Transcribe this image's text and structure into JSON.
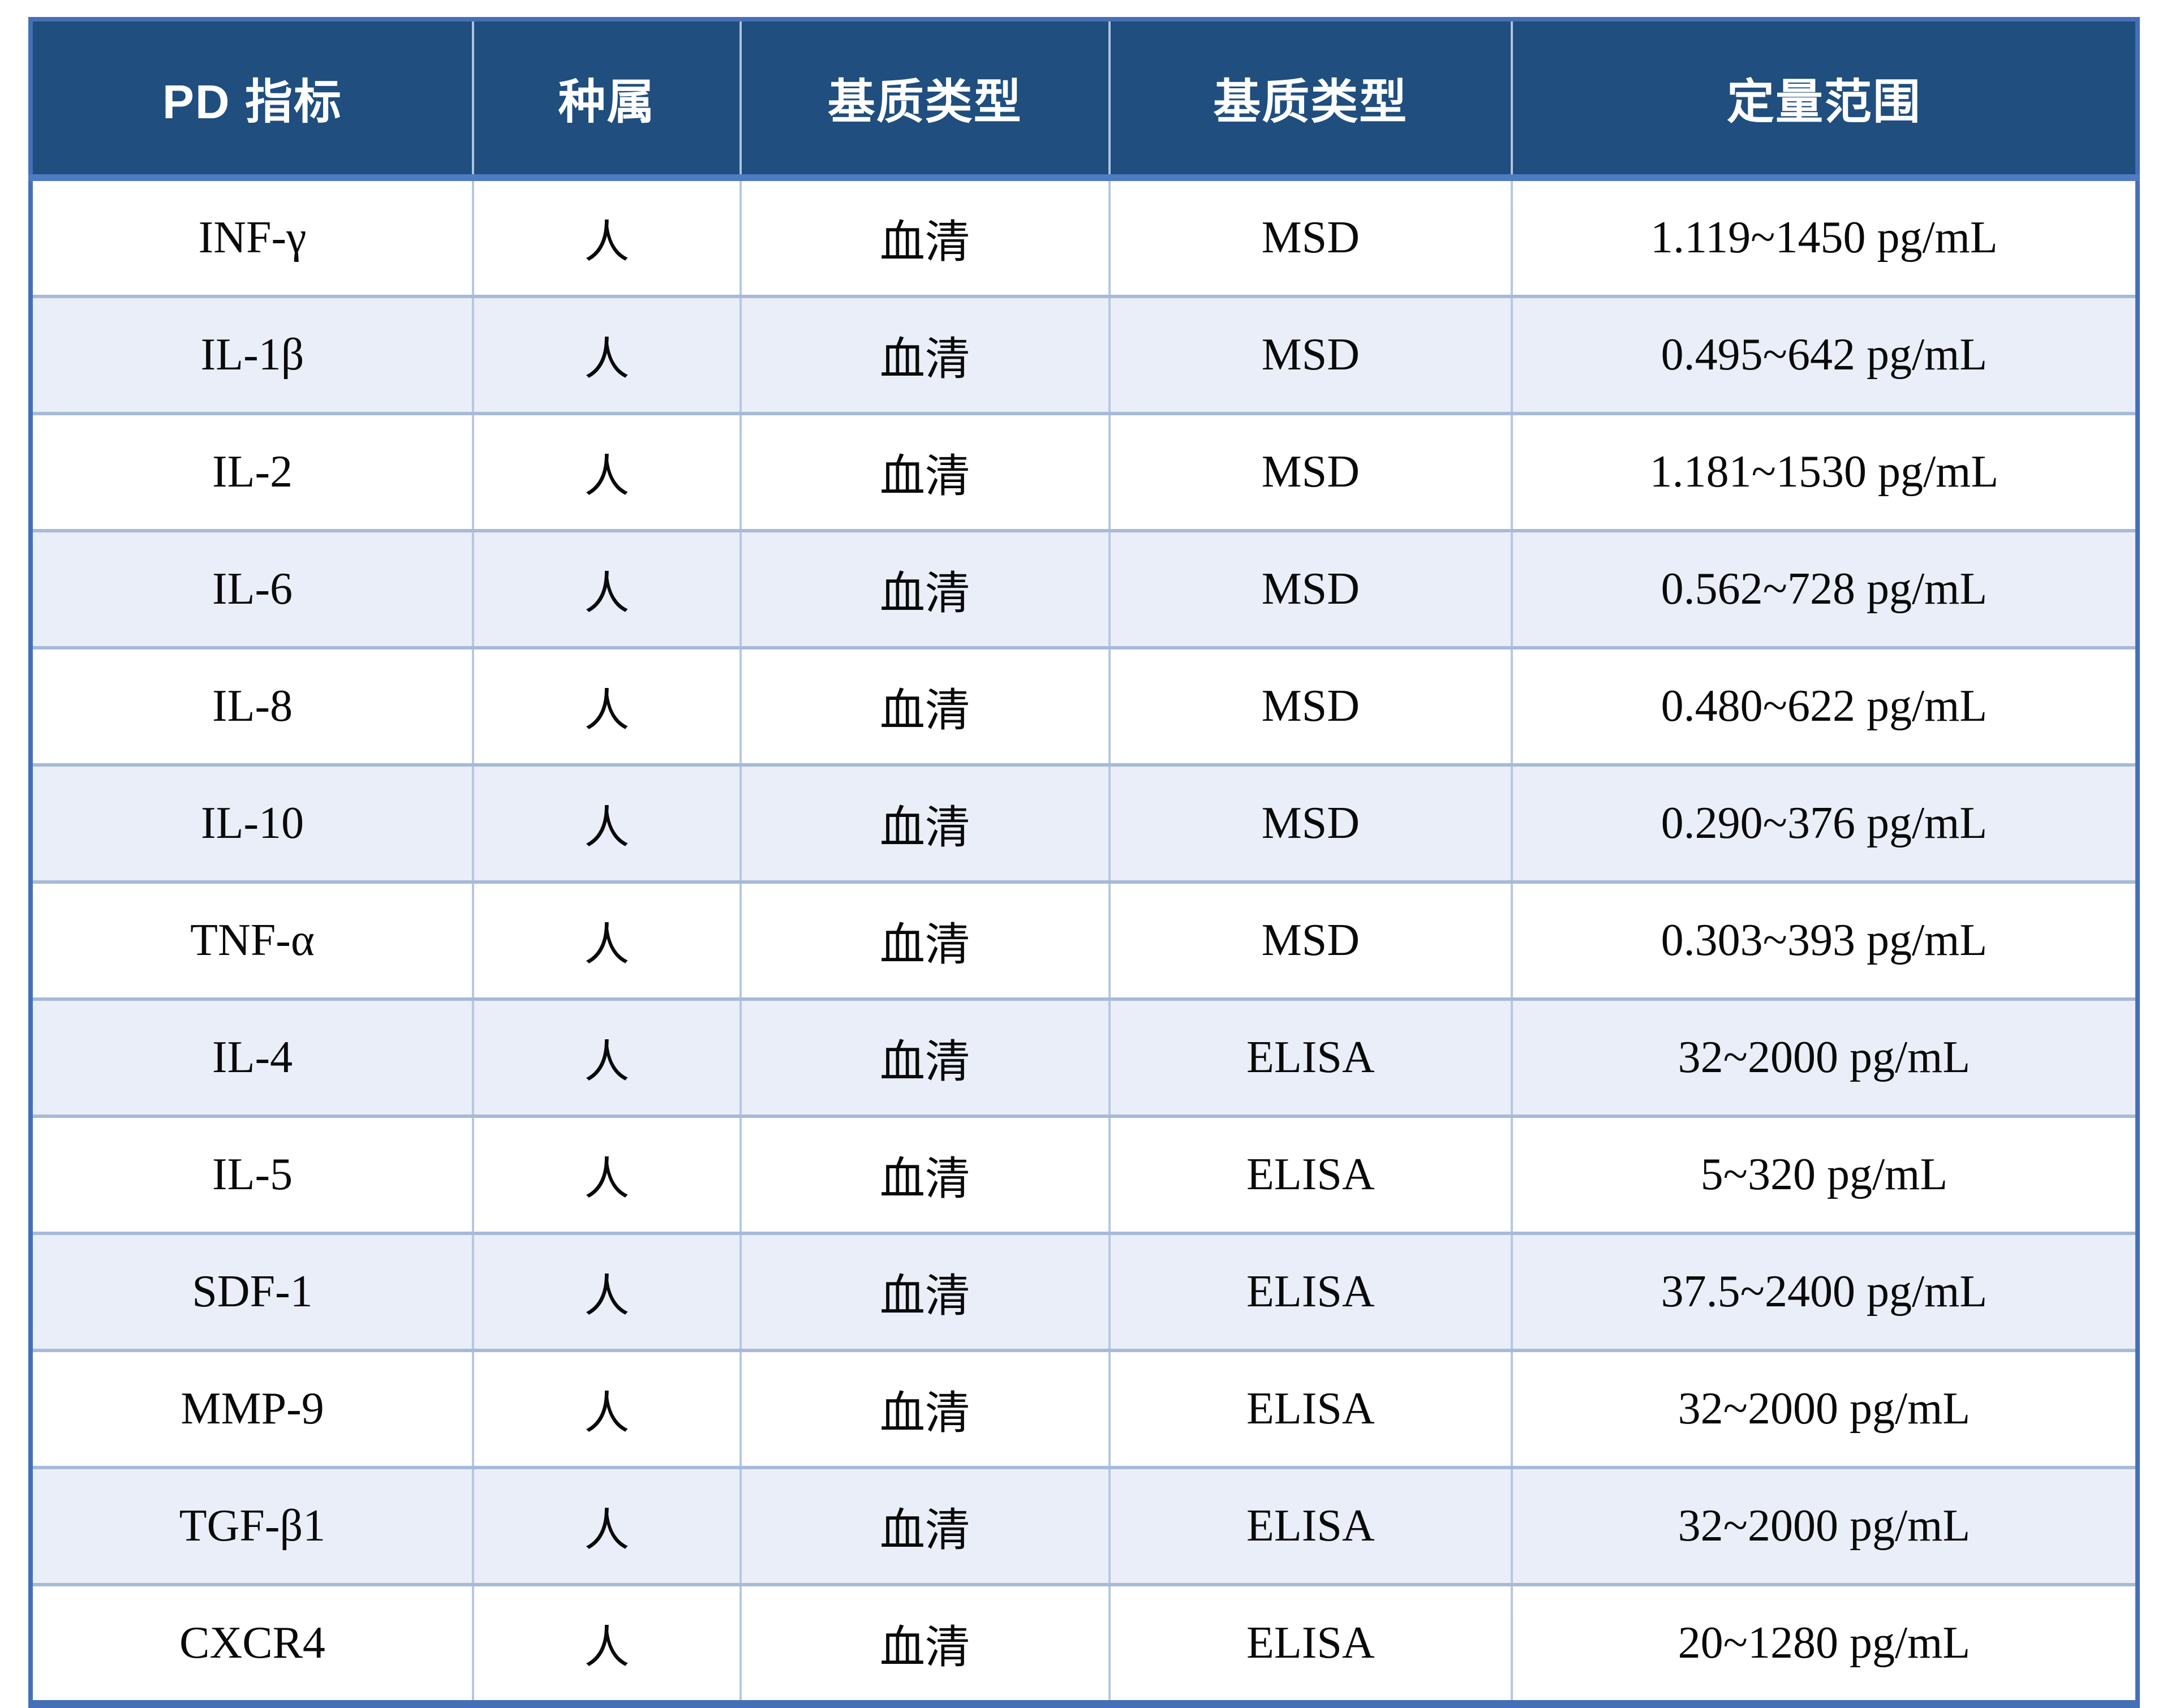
{
  "table": {
    "headers": [
      "PD 指标",
      "种属",
      "基质类型",
      "基质类型",
      "定量范围"
    ],
    "rows": [
      {
        "indicator": "INF-γ",
        "species": "人",
        "matrix": "血清",
        "platform": "MSD",
        "range": "1.119~1450 pg/mL"
      },
      {
        "indicator": "IL-1β",
        "species": "人",
        "matrix": "血清",
        "platform": "MSD",
        "range": "0.495~642 pg/mL"
      },
      {
        "indicator": "IL-2",
        "species": "人",
        "matrix": "血清",
        "platform": "MSD",
        "range": "1.181~1530 pg/mL"
      },
      {
        "indicator": "IL-6",
        "species": "人",
        "matrix": "血清",
        "platform": "MSD",
        "range": "0.562~728 pg/mL"
      },
      {
        "indicator": "IL-8",
        "species": "人",
        "matrix": "血清",
        "platform": "MSD",
        "range": "0.480~622 pg/mL"
      },
      {
        "indicator": "IL-10",
        "species": "人",
        "matrix": "血清",
        "platform": "MSD",
        "range": "0.290~376 pg/mL"
      },
      {
        "indicator": "TNF-α",
        "species": "人",
        "matrix": "血清",
        "platform": "MSD",
        "range": "0.303~393 pg/mL"
      },
      {
        "indicator": "IL-4",
        "species": "人",
        "matrix": "血清",
        "platform": "ELISA",
        "range": "32~2000 pg/mL"
      },
      {
        "indicator": "IL-5",
        "species": "人",
        "matrix": "血清",
        "platform": "ELISA",
        "range": "5~320 pg/mL"
      },
      {
        "indicator": "SDF-1",
        "species": "人",
        "matrix": "血清",
        "platform": "ELISA",
        "range": "37.5~2400 pg/mL"
      },
      {
        "indicator": "MMP-9",
        "species": "人",
        "matrix": "血清",
        "platform": "ELISA",
        "range": "32~2000 pg/mL"
      },
      {
        "indicator": "TGF-β1",
        "species": "人",
        "matrix": "血清",
        "platform": "ELISA",
        "range": "32~2000 pg/mL"
      },
      {
        "indicator": "CXCR4",
        "species": "人",
        "matrix": "血清",
        "platform": "ELISA",
        "range": "20~1280 pg/mL"
      }
    ],
    "colors": {
      "header_bg": "#1F4E7F",
      "header_text": "#FFFFFF",
      "outer_border": "#4470B6",
      "inner_vertical_border": "#B6C7E3",
      "inner_horizontal_border": "#A6BAD9",
      "row_alt_bg": "#E9EEF8",
      "row_bg": "#FFFFFF",
      "body_text": "#0A0A0A"
    }
  }
}
